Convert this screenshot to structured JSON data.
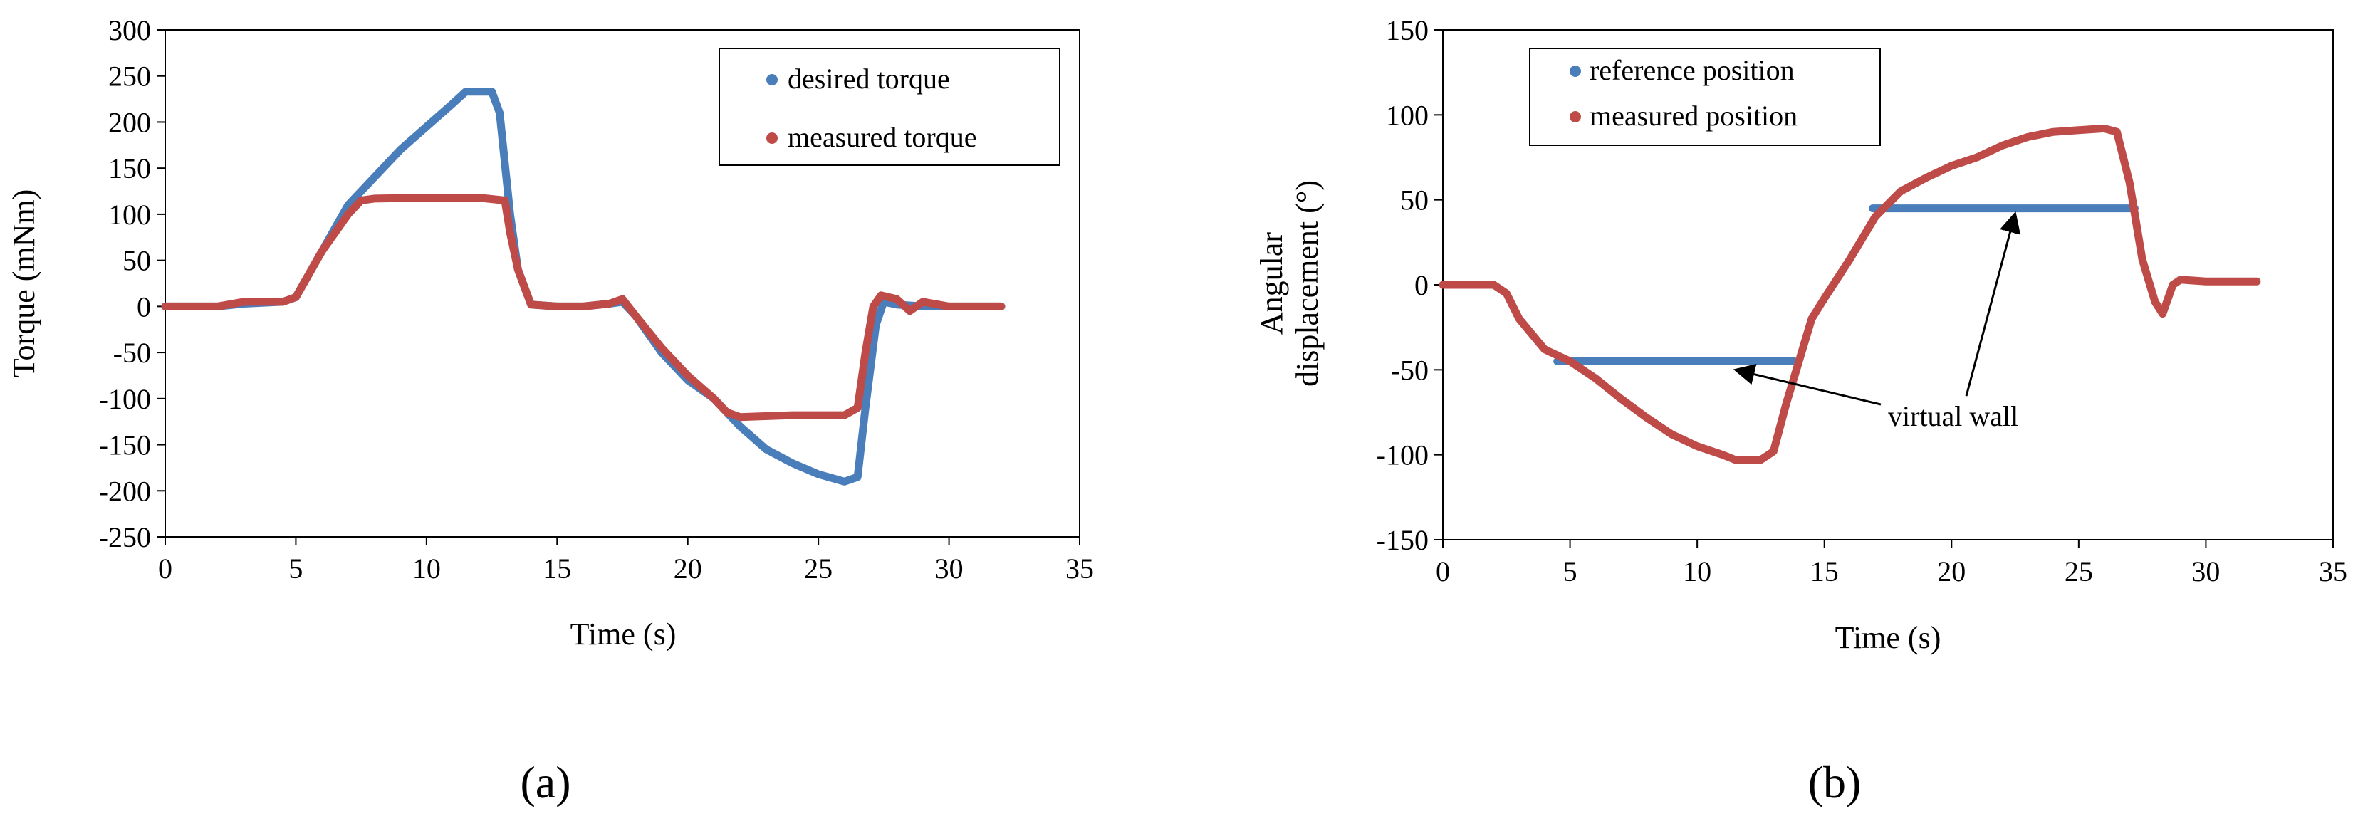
{
  "chart_data": [
    {
      "type": "line",
      "panel_label": "(a)",
      "xlabel": "Time (s)",
      "ylabel": "Torque (mNm)",
      "xlim": [
        0,
        35
      ],
      "ylim": [
        -250,
        300
      ],
      "xticks": [
        0,
        5,
        10,
        15,
        20,
        25,
        30,
        35
      ],
      "yticks": [
        300,
        250,
        200,
        150,
        100,
        50,
        0,
        -50,
        -100,
        -150,
        -200,
        -250
      ],
      "xtick_labels": [
        "0",
        "5",
        "10",
        "15",
        "20",
        "25",
        "30",
        "35"
      ],
      "ytick_labels": [
        "300",
        "250",
        "200",
        "150",
        "100",
        "50",
        "0",
        "-50",
        "-100",
        "-150",
        "-200",
        "-250"
      ],
      "legend_position": "top-right",
      "series": [
        {
          "name": "desired torque",
          "color": "#4a7ebb",
          "x": [
            0,
            2,
            3,
            4.5,
            5,
            6,
            7,
            8,
            9,
            10,
            11,
            11.5,
            12.5,
            12.8,
            13.2,
            13.5,
            14,
            15,
            16,
            17,
            17.5,
            18,
            19,
            20,
            21,
            22,
            23,
            24,
            25,
            26,
            26.5,
            26.8,
            27.2,
            27.5,
            28,
            29,
            30,
            31,
            32
          ],
          "y": [
            0,
            0,
            3,
            5,
            10,
            60,
            110,
            140,
            170,
            195,
            220,
            233,
            233,
            210,
            100,
            40,
            2,
            0,
            0,
            3,
            5,
            -10,
            -50,
            -80,
            -100,
            -130,
            -155,
            -170,
            -182,
            -190,
            -185,
            -110,
            -20,
            5,
            2,
            0,
            0,
            0,
            0
          ]
        },
        {
          "name": "measured torque",
          "color": "#be4b48",
          "x": [
            0,
            2,
            3,
            4.5,
            5,
            6,
            7,
            7.5,
            8,
            10,
            12,
            13,
            13.2,
            13.5,
            14,
            15,
            16,
            17,
            17.5,
            18,
            19,
            20,
            21,
            21.5,
            22,
            24,
            26,
            26.5,
            26.8,
            27.1,
            27.4,
            28,
            28.5,
            29,
            30,
            31,
            32
          ],
          "y": [
            0,
            0,
            5,
            5,
            10,
            60,
            100,
            115,
            117,
            118,
            118,
            115,
            80,
            40,
            2,
            0,
            0,
            3,
            8,
            -10,
            -45,
            -75,
            -100,
            -115,
            -120,
            -118,
            -118,
            -110,
            -50,
            0,
            12,
            8,
            -5,
            5,
            0,
            0,
            0
          ]
        }
      ]
    },
    {
      "type": "line",
      "panel_label": "(b)",
      "xlabel": "Time (s)",
      "ylabel_line1": "Angular",
      "ylabel_line2": "displacement (°)",
      "xlim": [
        0,
        35
      ],
      "ylim": [
        -150,
        150
      ],
      "xticks": [
        0,
        5,
        10,
        15,
        20,
        25,
        30,
        35
      ],
      "yticks": [
        150,
        100,
        50,
        0,
        -50,
        -100,
        -150
      ],
      "xtick_labels": [
        "0",
        "5",
        "10",
        "15",
        "20",
        "25",
        "30",
        "35"
      ],
      "ytick_labels": [
        "150",
        "100",
        "50",
        "0",
        "-50",
        "-100",
        "-150"
      ],
      "legend_position": "top-left",
      "annotation": {
        "text": "virtual wall",
        "text_at": [
          17.5,
          -83
        ],
        "arrows_to": [
          [
            11.5,
            -50
          ],
          [
            22.5,
            42
          ]
        ]
      },
      "series": [
        {
          "name": "reference position",
          "color": "#4a7ebb",
          "segments": [
            {
              "x": [
                4.5,
                13.8
              ],
              "y": [
                -45,
                -45
              ]
            },
            {
              "x": [
                16.9,
                27.2
              ],
              "y": [
                45,
                45
              ]
            }
          ]
        },
        {
          "name": "measured position",
          "color": "#be4b48",
          "x": [
            0,
            2,
            2.5,
            3,
            4,
            5,
            6,
            7,
            8,
            9,
            10,
            11,
            11.5,
            12.5,
            13,
            13.5,
            14,
            14.5,
            15,
            16,
            17,
            18,
            19,
            20,
            21,
            22,
            23,
            24,
            25,
            26,
            26.5,
            27,
            27.5,
            28,
            28.3,
            28.7,
            29,
            30,
            31,
            32
          ],
          "y": [
            0,
            0,
            -5,
            -20,
            -38,
            -45,
            -55,
            -67,
            -78,
            -88,
            -95,
            -100,
            -103,
            -103,
            -98,
            -70,
            -45,
            -20,
            -8,
            15,
            40,
            55,
            63,
            70,
            75,
            82,
            87,
            90,
            91,
            92,
            90,
            60,
            15,
            -10,
            -17,
            0,
            3,
            2,
            2,
            2
          ]
        }
      ]
    }
  ]
}
